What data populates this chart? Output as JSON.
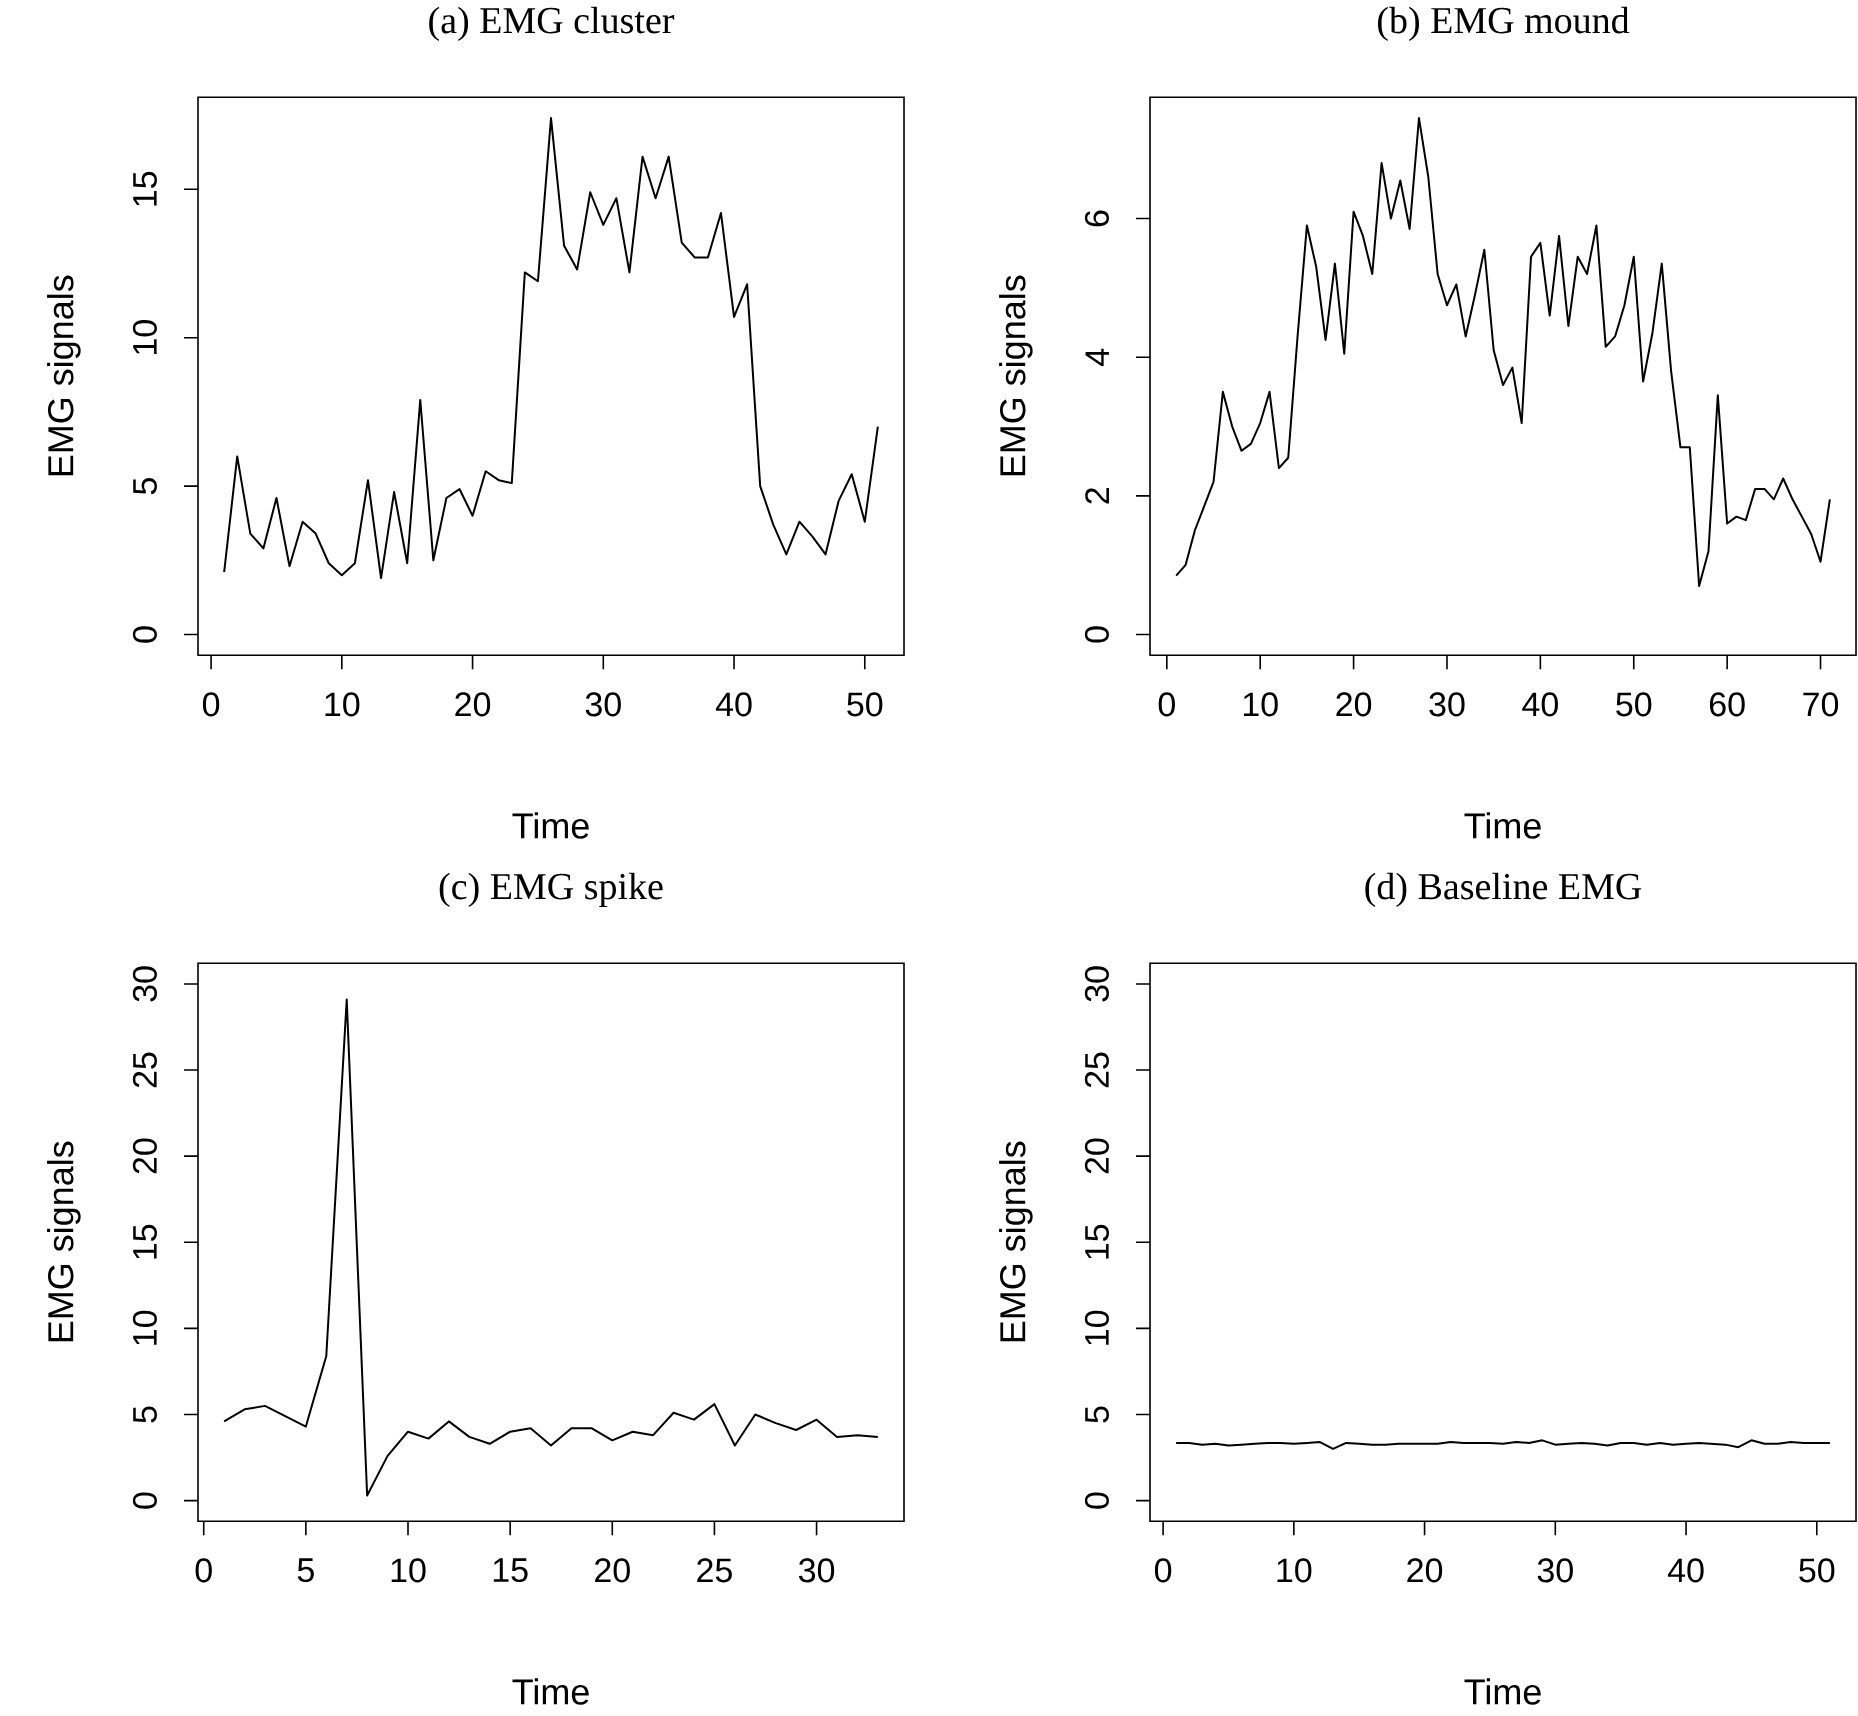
{
  "chart_data": [
    {
      "type": "line",
      "title": "(a) EMG cluster",
      "xlabel": "Time",
      "ylabel": "EMG signals",
      "xlim": [
        -1,
        53
      ],
      "ylim": [
        -0.7,
        18.1
      ],
      "xticks": [
        0,
        10,
        20,
        30,
        40,
        50
      ],
      "yticks": [
        0,
        5,
        10,
        15
      ],
      "series": [
        {
          "color": "#000000",
          "x": [
            1,
            2,
            3,
            4,
            5,
            6,
            7,
            8,
            9,
            10,
            11,
            12,
            13,
            14,
            15,
            16,
            17,
            18,
            19,
            20,
            21,
            22,
            23,
            24,
            25,
            26,
            27,
            28,
            29,
            30,
            31,
            32,
            33,
            34,
            35,
            36,
            37,
            38,
            39,
            40,
            41,
            42,
            43,
            44,
            45,
            46,
            47,
            48,
            49,
            50,
            51
          ],
          "values": [
            2.1,
            6.0,
            3.4,
            2.9,
            4.6,
            2.3,
            3.8,
            3.4,
            2.4,
            2.0,
            2.4,
            5.2,
            1.9,
            4.8,
            2.4,
            7.9,
            2.5,
            4.6,
            4.9,
            4.0,
            5.5,
            5.2,
            5.1,
            12.2,
            11.9,
            17.4,
            13.1,
            12.3,
            14.9,
            13.8,
            14.7,
            12.2,
            16.1,
            14.7,
            16.1,
            13.2,
            12.7,
            12.7,
            14.2,
            10.7,
            11.8,
            5.0,
            3.7,
            2.7,
            3.8,
            3.3,
            2.7,
            4.5,
            5.4,
            3.8,
            7.0
          ]
        }
      ]
    },
    {
      "type": "line",
      "title": "(b) EMG mound",
      "xlabel": "Time",
      "ylabel": "EMG signals",
      "xlim": [
        -1.8,
        73.8
      ],
      "ylim": [
        -0.3,
        7.75
      ],
      "xticks": [
        0,
        10,
        20,
        30,
        40,
        50,
        60,
        70
      ],
      "yticks": [
        0,
        2,
        4,
        6
      ],
      "series": [
        {
          "color": "#000000",
          "x": [
            1,
            2,
            3,
            4,
            5,
            6,
            7,
            8,
            9,
            10,
            11,
            12,
            13,
            14,
            15,
            16,
            17,
            18,
            19,
            20,
            21,
            22,
            23,
            24,
            25,
            26,
            27,
            28,
            29,
            30,
            31,
            32,
            33,
            34,
            35,
            36,
            37,
            38,
            39,
            40,
            41,
            42,
            43,
            44,
            45,
            46,
            47,
            48,
            49,
            50,
            51,
            52,
            53,
            54,
            55,
            56,
            57,
            58,
            59,
            60,
            61,
            62,
            63,
            64,
            65,
            66,
            67,
            68,
            69,
            70,
            71
          ],
          "values": [
            0.85,
            1.0,
            1.5,
            1.85,
            2.2,
            3.5,
            3.0,
            2.65,
            2.75,
            3.05,
            3.5,
            2.4,
            2.55,
            4.3,
            5.9,
            5.3,
            4.25,
            5.35,
            4.05,
            6.1,
            5.75,
            5.2,
            6.8,
            6.0,
            6.55,
            5.85,
            7.45,
            6.6,
            5.2,
            4.75,
            5.05,
            4.3,
            4.9,
            5.55,
            4.1,
            3.6,
            3.85,
            3.05,
            5.45,
            5.65,
            4.6,
            5.75,
            4.45,
            5.45,
            5.2,
            5.9,
            4.15,
            4.3,
            4.75,
            5.45,
            3.65,
            4.35,
            5.35,
            3.8,
            2.7,
            2.7,
            0.7,
            1.2,
            3.45,
            1.6,
            1.7,
            1.65,
            2.1,
            2.1,
            1.95,
            2.25,
            1.95,
            1.7,
            1.45,
            1.05,
            1.95
          ]
        }
      ]
    },
    {
      "type": "line",
      "title": "(c) EMG spike",
      "xlabel": "Time",
      "ylabel": "EMG signals",
      "xlim": [
        -0.28,
        34.28
      ],
      "ylim": [
        -1.2,
        31.2
      ],
      "xticks": [
        0,
        5,
        10,
        15,
        20,
        25,
        30
      ],
      "yticks": [
        0,
        5,
        10,
        15,
        20,
        25,
        30
      ],
      "series": [
        {
          "color": "#000000",
          "x": [
            1,
            2,
            3,
            4,
            5,
            6,
            7,
            8,
            9,
            10,
            11,
            12,
            13,
            14,
            15,
            16,
            17,
            18,
            19,
            20,
            21,
            22,
            23,
            24,
            25,
            26,
            27,
            28,
            29,
            30,
            31,
            32,
            33
          ],
          "values": [
            4.6,
            5.3,
            5.5,
            4.9,
            4.3,
            8.4,
            29.1,
            0.3,
            2.6,
            4.0,
            3.6,
            4.6,
            3.7,
            3.3,
            4.0,
            4.2,
            3.2,
            4.2,
            4.2,
            3.5,
            4.0,
            3.8,
            5.1,
            4.7,
            5.6,
            3.2,
            5.0,
            4.5,
            4.1,
            4.7,
            3.7,
            3.8,
            3.7
          ]
        }
      ]
    },
    {
      "type": "line",
      "title": "(d) Baseline EMG",
      "xlabel": "Time",
      "ylabel": "EMG signals",
      "xlim": [
        -1,
        53
      ],
      "ylim": [
        -1.2,
        31.2
      ],
      "xticks": [
        0,
        10,
        20,
        30,
        40,
        50
      ],
      "yticks": [
        0,
        5,
        10,
        15,
        20,
        25,
        30
      ],
      "series": [
        {
          "color": "#000000",
          "x": [
            1,
            2,
            3,
            4,
            5,
            6,
            7,
            8,
            9,
            10,
            11,
            12,
            13,
            14,
            15,
            16,
            17,
            18,
            19,
            20,
            21,
            22,
            23,
            24,
            25,
            26,
            27,
            28,
            29,
            30,
            31,
            32,
            33,
            34,
            35,
            36,
            37,
            38,
            39,
            40,
            41,
            42,
            43,
            44,
            45,
            46,
            47,
            48,
            49,
            50,
            51
          ],
          "values": [
            3.35,
            3.35,
            3.25,
            3.3,
            3.2,
            3.25,
            3.3,
            3.35,
            3.35,
            3.3,
            3.35,
            3.4,
            3.0,
            3.35,
            3.3,
            3.25,
            3.25,
            3.3,
            3.3,
            3.3,
            3.3,
            3.4,
            3.35,
            3.35,
            3.35,
            3.3,
            3.4,
            3.35,
            3.5,
            3.25,
            3.3,
            3.35,
            3.3,
            3.2,
            3.35,
            3.35,
            3.25,
            3.35,
            3.25,
            3.3,
            3.35,
            3.3,
            3.25,
            3.1,
            3.5,
            3.3,
            3.3,
            3.4,
            3.35,
            3.35,
            3.35
          ]
        }
      ]
    }
  ]
}
